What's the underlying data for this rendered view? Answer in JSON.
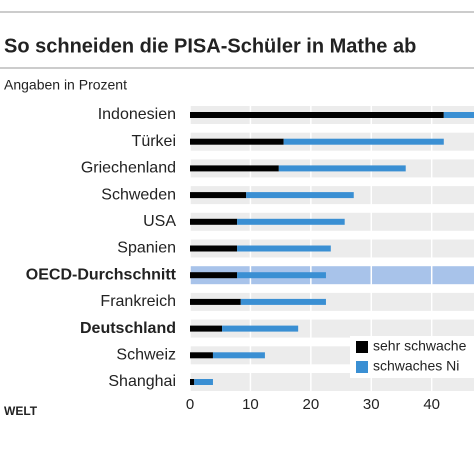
{
  "chart_data": {
    "type": "stacked_barh",
    "title": "So schneiden die PISA-Schüler in Mathe ab",
    "subtitle": "Angaben in Prozent",
    "source": "WELT",
    "categories": [
      "Indonesien",
      "Türkei",
      "Griechenland",
      "Schweden",
      "USA",
      "Spanien",
      "OECD-Durchschnitt",
      "Frankreich",
      "Deutschland",
      "Schweiz",
      "Shanghai"
    ],
    "series": [
      {
        "name": "sehr schwache",
        "color": "#000000",
        "values": [
          42.0,
          15.5,
          14.7,
          9.3,
          7.8,
          7.8,
          7.8,
          8.4,
          5.3,
          3.8,
          0.7
        ]
      },
      {
        "name": "schwaches Ni",
        "color": "#3a8fd3",
        "values": [
          7.0,
          26.5,
          21.0,
          17.8,
          17.8,
          15.5,
          14.7,
          14.1,
          12.6,
          8.6,
          3.1
        ]
      }
    ],
    "xlim": [
      0,
      47
    ],
    "xticks": [
      0,
      10,
      20,
      30,
      40
    ],
    "highlight": [
      6
    ],
    "bold": [
      6,
      8
    ],
    "grid": true
  }
}
